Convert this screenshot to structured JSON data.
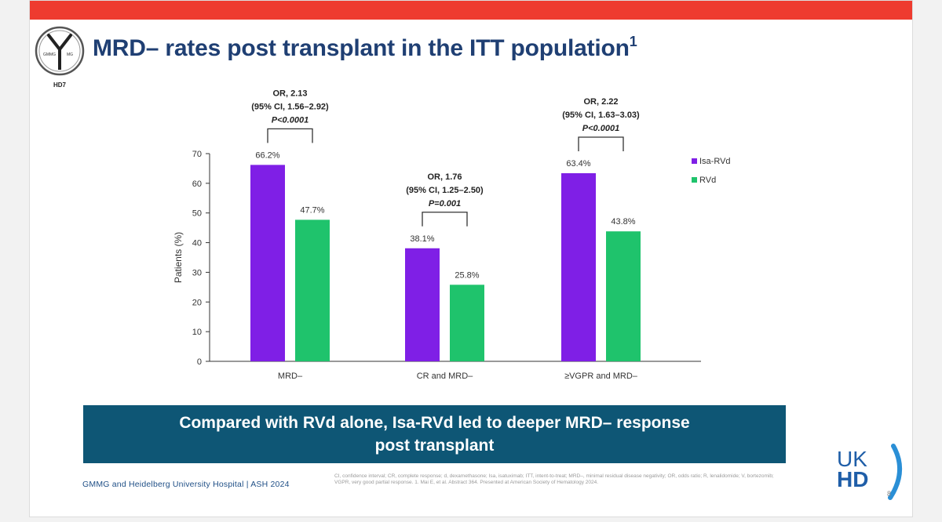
{
  "title": "MRD– rates post transplant in the ITT population",
  "title_sup": "1",
  "logo": {
    "top_left": "GMMG",
    "top_right": "MG",
    "bottom": "HD7"
  },
  "chart_data": {
    "type": "bar",
    "categories": [
      "MRD–",
      "CR and MRD–",
      "≥VGPR and MRD–"
    ],
    "series": [
      {
        "name": "Isa-RVd",
        "values": [
          66.2,
          38.1,
          63.4
        ],
        "labels": [
          "66.2%",
          "38.1%",
          "63.4%"
        ],
        "color": "#7f1fe6"
      },
      {
        "name": "RVd",
        "values": [
          47.7,
          25.8,
          43.8
        ],
        "labels": [
          "47.7%",
          "25.8%",
          "43.8%"
        ],
        "color": "#1fc36c"
      }
    ],
    "ylabel": "Patients (%)",
    "ylim": [
      0,
      70
    ],
    "yticks": [
      0,
      10,
      20,
      30,
      40,
      50,
      60,
      70
    ],
    "grid": false,
    "legend": "right",
    "annotations": [
      {
        "lines": [
          "OR, 2.13",
          "(95% CI, 1.56–2.92)",
          "P<0.0001"
        ]
      },
      {
        "lines": [
          "OR, 1.76",
          "(95% CI, 1.25–2.50)",
          "P=0.001"
        ]
      },
      {
        "lines": [
          "OR, 2.22",
          "(95% CI, 1.63–3.03)",
          "P<0.0001"
        ]
      }
    ]
  },
  "callout": {
    "line1": "Compared with RVd alone, Isa-RVd led to deeper MRD– response",
    "line2": "post transplant"
  },
  "footer": {
    "source": "GMMG and Heidelberg University Hospital | ASH 2024",
    "fineprint": "CI, confidence interval; CR, complete response; d, dexamethasone; Isa, isatuximab; ITT, intent-to-treat; MRD–, minimal residual disease negativity; OR, odds ratio; R, lenalidomide; V, bortezomib; VGPR, very good partial response. 1. Mai E, et al. Abstract 364. Presented at American Society of Hematology 2024.",
    "page": "8"
  },
  "ukhd": {
    "line1": "UK",
    "line2": "HD"
  },
  "colors": {
    "topbar": "#ee3b2f",
    "title": "#1f3f73",
    "callout": "#0e5675"
  }
}
